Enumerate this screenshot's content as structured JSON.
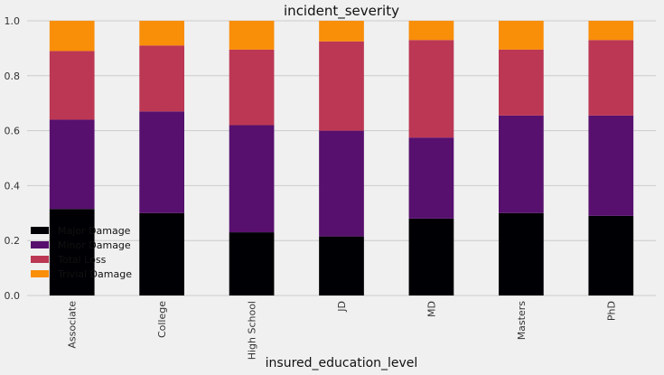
{
  "chart_data": {
    "type": "bar",
    "stacked": true,
    "title": "incident_severity",
    "xlabel": "insured_education_level",
    "ylabel": "",
    "ylim": [
      0,
      1.0
    ],
    "yticks": [
      "0.0",
      "0.2",
      "0.4",
      "0.6",
      "0.8",
      "1.0"
    ],
    "categories": [
      "Associate",
      "College",
      "High School",
      "JD",
      "MD",
      "Masters",
      "PhD"
    ],
    "series": [
      {
        "name": "Major Damage",
        "color": "#000004",
        "values": [
          0.315,
          0.3,
          0.23,
          0.215,
          0.28,
          0.3,
          0.29
        ]
      },
      {
        "name": "Minor Damage",
        "color": "#57106e",
        "values": [
          0.325,
          0.37,
          0.39,
          0.385,
          0.295,
          0.355,
          0.365
        ]
      },
      {
        "name": "Total Loss",
        "color": "#bc3754",
        "values": [
          0.25,
          0.24,
          0.275,
          0.325,
          0.355,
          0.24,
          0.275
        ]
      },
      {
        "name": "Trivial Damage",
        "color": "#f98e09",
        "values": [
          0.11,
          0.09,
          0.105,
          0.075,
          0.07,
          0.105,
          0.07
        ]
      }
    ],
    "grid": true,
    "legend": "lower-left"
  }
}
